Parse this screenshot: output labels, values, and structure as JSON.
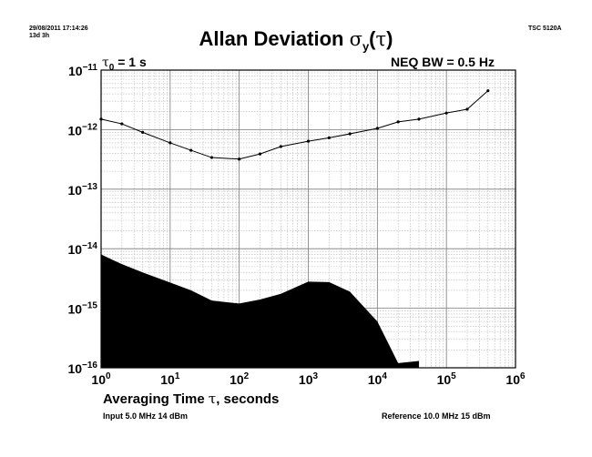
{
  "header": {
    "timestamp": "29/08/2011 17:14:26",
    "duration": "13d 3h",
    "instrument": "TSC 5120A",
    "title_text": "Allan Deviation ",
    "title_sigma": "σ",
    "title_sub": "y",
    "title_open": "(",
    "title_tau": "τ",
    "title_close": ")",
    "tau0_sym": "τ",
    "tau0_sub": "0",
    "tau0_rest": " = 1 s",
    "neq_bw": "NEQ BW = 0.5 Hz"
  },
  "footer": {
    "xlabel_text": "Averaging Time ",
    "xlabel_tau": "τ",
    "xlabel_rest": ", seconds",
    "input": "Input 5.0 MHz 14 dBm",
    "reference": "Reference 10.0 MHz 15 dBm"
  },
  "chart_data": {
    "type": "line",
    "xscale": "log",
    "yscale": "log",
    "xlim": [
      1,
      1000000
    ],
    "ylim": [
      1e-16,
      1e-11
    ],
    "grid": true,
    "x_ticks": [
      {
        "base": "10",
        "exp": "0"
      },
      {
        "base": "10",
        "exp": "1"
      },
      {
        "base": "10",
        "exp": "2"
      },
      {
        "base": "10",
        "exp": "3"
      },
      {
        "base": "10",
        "exp": "4"
      },
      {
        "base": "10",
        "exp": "5"
      },
      {
        "base": "10",
        "exp": "6"
      }
    ],
    "y_ticks": [
      {
        "base": "10",
        "exp": "−11"
      },
      {
        "base": "10",
        "exp": "−12"
      },
      {
        "base": "10",
        "exp": "−13"
      },
      {
        "base": "10",
        "exp": "−14"
      },
      {
        "base": "10",
        "exp": "−15"
      },
      {
        "base": "10",
        "exp": "−16"
      }
    ],
    "series": [
      {
        "x": [
          1,
          2,
          4,
          10,
          20,
          40,
          100,
          200,
          400,
          1000,
          2000,
          4000,
          10000,
          20000,
          40000,
          100000,
          200000,
          400000
        ],
        "y": [
          1.5e-12,
          1.25e-12,
          9e-13,
          6e-13,
          4.5e-13,
          3.4e-13,
          3.2e-13,
          3.9e-13,
          5.2e-13,
          6.4e-13,
          7.3e-13,
          8.5e-13,
          1.05e-12,
          1.35e-12,
          1.5e-12,
          1.9e-12,
          2.2e-12,
          4.5e-12
        ],
        "color": "#000000"
      }
    ],
    "noise_floor": {
      "x": [
        1,
        2,
        4,
        10,
        20,
        40,
        100,
        200,
        400,
        1000,
        2000,
        4000,
        10000,
        20000,
        40000
      ],
      "y": [
        8e-15,
        5.5e-15,
        4e-15,
        2.7e-15,
        2e-15,
        1.35e-15,
        1.2e-15,
        1.4e-15,
        1.75e-15,
        2.8e-15,
        2.75e-15,
        1.9e-15,
        6e-16,
        1.2e-16,
        1.3e-16
      ],
      "color": "#000000"
    }
  }
}
